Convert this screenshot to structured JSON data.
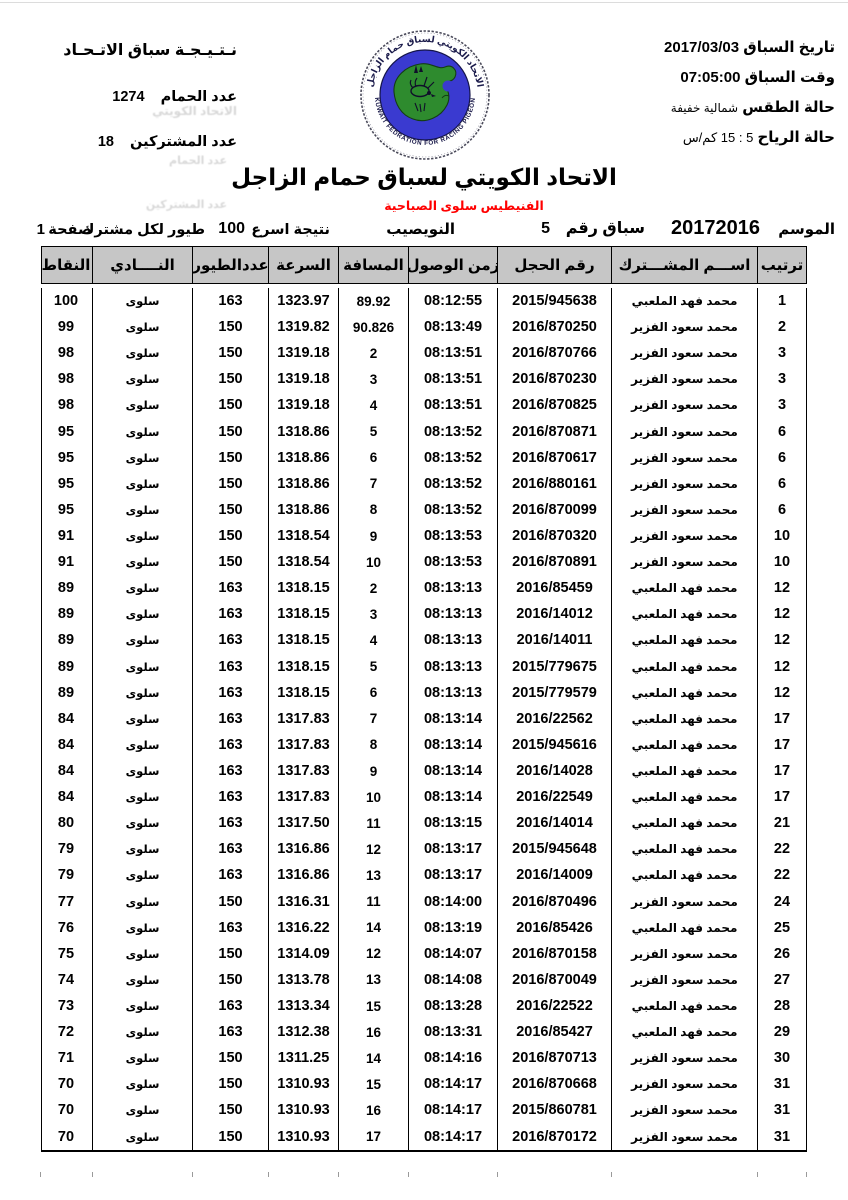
{
  "meta": {
    "left": {
      "result_title": "نـتـيـجـة سباق الاتـحـاد",
      "pigeon_count_label": "عدد الحمام",
      "pigeon_count": "1274",
      "participant_count_label": "عدد المشتركين",
      "participant_count": "18",
      "bleed_through_1": "الاتحاد الكويتي",
      "bleed_through_2": "عدد الحمام",
      "bleed_through_3": "عدد المشتركين"
    },
    "right": {
      "date_label": "تاريخ السباق",
      "date": "2017/03/03",
      "time_label": "وقت السباق",
      "time": "07:05:00",
      "weather_label": "حالة الطقس",
      "weather": "شمالية خفيفة",
      "wind_label": "حالة الرياح",
      "wind": "5 : 15 كم/س"
    },
    "logo": {
      "arabic": "الاتحاد الكويتي لسباق حمام الزاجل",
      "english": "KUWAIT FEDRATION FOR RACING PIGEON"
    },
    "title": "الاتحاد الكويتي لسباق حمام الزاجل",
    "clubs": "الفنيطيس سلوى الصباحية",
    "info": {
      "season_label": "الموسم",
      "season": "20172016",
      "race_label": "سباق رقم",
      "race_no": "5",
      "site": "النويصيب",
      "result_label": "نتيجة اسرع",
      "fastest": "100",
      "result_suffix": "طيور لكل مشترك",
      "page_label": "صفحة",
      "page": "1"
    }
  },
  "colors": {
    "accent_red": "#ff0000",
    "logo_blue": "#3a3ad0",
    "logo_green": "#2e8b2e",
    "header_gray": "#c6c6c6"
  },
  "table": {
    "headers": {
      "rank": "ترتيب",
      "name": "اســـم المشـــترك",
      "ring": "رقم الحجل",
      "arrival": "زمن الوصول",
      "distance": "المسافة",
      "speed": "السرعة",
      "birds": "عددالطيور",
      "club": "النــــادي",
      "points": "النقاط"
    },
    "rows": [
      [
        "1",
        "محمد فهد الملعبي",
        "2015/945638",
        "08:12:55",
        "89.92",
        "1323.97",
        "163",
        "سلوى",
        "100"
      ],
      [
        "2",
        "محمد سعود الفزير",
        "2016/870250",
        "08:13:49",
        "90.826",
        "1319.82",
        "150",
        "سلوى",
        "99"
      ],
      [
        "3",
        "محمد سعود الفزير",
        "2016/870766",
        "08:13:51",
        "2",
        "1319.18",
        "150",
        "سلوى",
        "98"
      ],
      [
        "3",
        "محمد سعود الفزير",
        "2016/870230",
        "08:13:51",
        "3",
        "1319.18",
        "150",
        "سلوى",
        "98"
      ],
      [
        "3",
        "محمد سعود الفزير",
        "2016/870825",
        "08:13:51",
        "4",
        "1319.18",
        "150",
        "سلوى",
        "98"
      ],
      [
        "6",
        "محمد سعود الفزير",
        "2016/870871",
        "08:13:52",
        "5",
        "1318.86",
        "150",
        "سلوى",
        "95"
      ],
      [
        "6",
        "محمد سعود الفزير",
        "2016/870617",
        "08:13:52",
        "6",
        "1318.86",
        "150",
        "سلوى",
        "95"
      ],
      [
        "6",
        "محمد سعود الفزير",
        "2016/880161",
        "08:13:52",
        "7",
        "1318.86",
        "150",
        "سلوى",
        "95"
      ],
      [
        "6",
        "محمد سعود الفزير",
        "2016/870099",
        "08:13:52",
        "8",
        "1318.86",
        "150",
        "سلوى",
        "95"
      ],
      [
        "10",
        "محمد سعود الفزير",
        "2016/870320",
        "08:13:53",
        "9",
        "1318.54",
        "150",
        "سلوى",
        "91"
      ],
      [
        "10",
        "محمد سعود الفزير",
        "2016/870891",
        "08:13:53",
        "10",
        "1318.54",
        "150",
        "سلوى",
        "91"
      ],
      [
        "12",
        "محمد فهد الملعبي",
        "2016/85459",
        "08:13:13",
        "2",
        "1318.15",
        "163",
        "سلوى",
        "89"
      ],
      [
        "12",
        "محمد فهد الملعبي",
        "2016/14012",
        "08:13:13",
        "3",
        "1318.15",
        "163",
        "سلوى",
        "89"
      ],
      [
        "12",
        "محمد فهد الملعبي",
        "2016/14011",
        "08:13:13",
        "4",
        "1318.15",
        "163",
        "سلوى",
        "89"
      ],
      [
        "12",
        "محمد فهد الملعبي",
        "2015/779675",
        "08:13:13",
        "5",
        "1318.15",
        "163",
        "سلوى",
        "89"
      ],
      [
        "12",
        "محمد فهد الملعبي",
        "2015/779579",
        "08:13:13",
        "6",
        "1318.15",
        "163",
        "سلوى",
        "89"
      ],
      [
        "17",
        "محمد فهد الملعبي",
        "2016/22562",
        "08:13:14",
        "7",
        "1317.83",
        "163",
        "سلوى",
        "84"
      ],
      [
        "17",
        "محمد فهد الملعبي",
        "2015/945616",
        "08:13:14",
        "8",
        "1317.83",
        "163",
        "سلوى",
        "84"
      ],
      [
        "17",
        "محمد فهد الملعبي",
        "2016/14028",
        "08:13:14",
        "9",
        "1317.83",
        "163",
        "سلوى",
        "84"
      ],
      [
        "17",
        "محمد فهد الملعبي",
        "2016/22549",
        "08:13:14",
        "10",
        "1317.83",
        "163",
        "سلوى",
        "84"
      ],
      [
        "21",
        "محمد فهد الملعبي",
        "2016/14014",
        "08:13:15",
        "11",
        "1317.50",
        "163",
        "سلوى",
        "80"
      ],
      [
        "22",
        "محمد فهد الملعبي",
        "2015/945648",
        "08:13:17",
        "12",
        "1316.86",
        "163",
        "سلوى",
        "79"
      ],
      [
        "22",
        "محمد فهد الملعبي",
        "2016/14009",
        "08:13:17",
        "13",
        "1316.86",
        "163",
        "سلوى",
        "79"
      ],
      [
        "24",
        "محمد سعود الفزير",
        "2016/870496",
        "08:14:00",
        "11",
        "1316.31",
        "150",
        "سلوى",
        "77"
      ],
      [
        "25",
        "محمد فهد الملعبي",
        "2016/85426",
        "08:13:19",
        "14",
        "1316.22",
        "163",
        "سلوى",
        "76"
      ],
      [
        "26",
        "محمد سعود الفزير",
        "2016/870158",
        "08:14:07",
        "12",
        "1314.09",
        "150",
        "سلوى",
        "75"
      ],
      [
        "27",
        "محمد سعود الفزير",
        "2016/870049",
        "08:14:08",
        "13",
        "1313.78",
        "150",
        "سلوى",
        "74"
      ],
      [
        "28",
        "محمد فهد الملعبي",
        "2016/22522",
        "08:13:28",
        "15",
        "1313.34",
        "163",
        "سلوى",
        "73"
      ],
      [
        "29",
        "محمد فهد الملعبي",
        "2016/85427",
        "08:13:31",
        "16",
        "1312.38",
        "163",
        "سلوى",
        "72"
      ],
      [
        "30",
        "محمد سعود الفزير",
        "2016/870713",
        "08:14:16",
        "14",
        "1311.25",
        "150",
        "سلوى",
        "71"
      ],
      [
        "31",
        "محمد سعود الفزير",
        "2016/870668",
        "08:14:17",
        "15",
        "1310.93",
        "150",
        "سلوى",
        "70"
      ],
      [
        "31",
        "محمد سعود الفزير",
        "2015/860781",
        "08:14:17",
        "16",
        "1310.93",
        "150",
        "سلوى",
        "70"
      ],
      [
        "31",
        "محمد سعود الفزير",
        "2016/870172",
        "08:14:17",
        "17",
        "1310.93",
        "150",
        "سلوى",
        "70"
      ]
    ]
  }
}
